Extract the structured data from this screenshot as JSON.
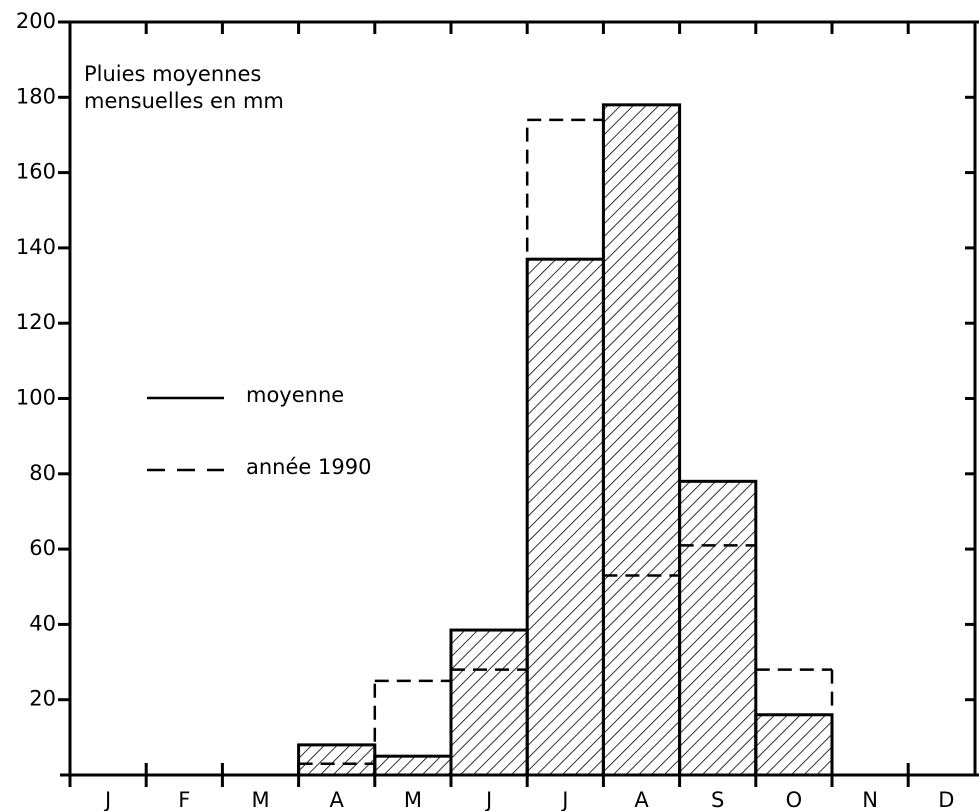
{
  "chart_data": {
    "type": "bar",
    "title": [
      "Pluies moyennes",
      "mensuelles en mm"
    ],
    "categories": [
      "J",
      "F",
      "M",
      "A",
      "M",
      "J",
      "J",
      "A",
      "S",
      "O",
      "N",
      "D"
    ],
    "series": [
      {
        "name": "moyenne",
        "color": "#000000",
        "hatched": true,
        "values": [
          0,
          0,
          0,
          8,
          5,
          38.5,
          137,
          178,
          78,
          16,
          0,
          0
        ]
      },
      {
        "name": "année 1990",
        "color": "#000000",
        "dashed": true,
        "values": [
          0,
          0,
          0,
          3,
          25,
          28,
          174,
          53,
          61,
          28,
          0,
          0
        ]
      }
    ],
    "ylim": [
      0,
      200
    ],
    "yticks": [
      20,
      40,
      60,
      80,
      100,
      120,
      140,
      160,
      180,
      200
    ]
  }
}
